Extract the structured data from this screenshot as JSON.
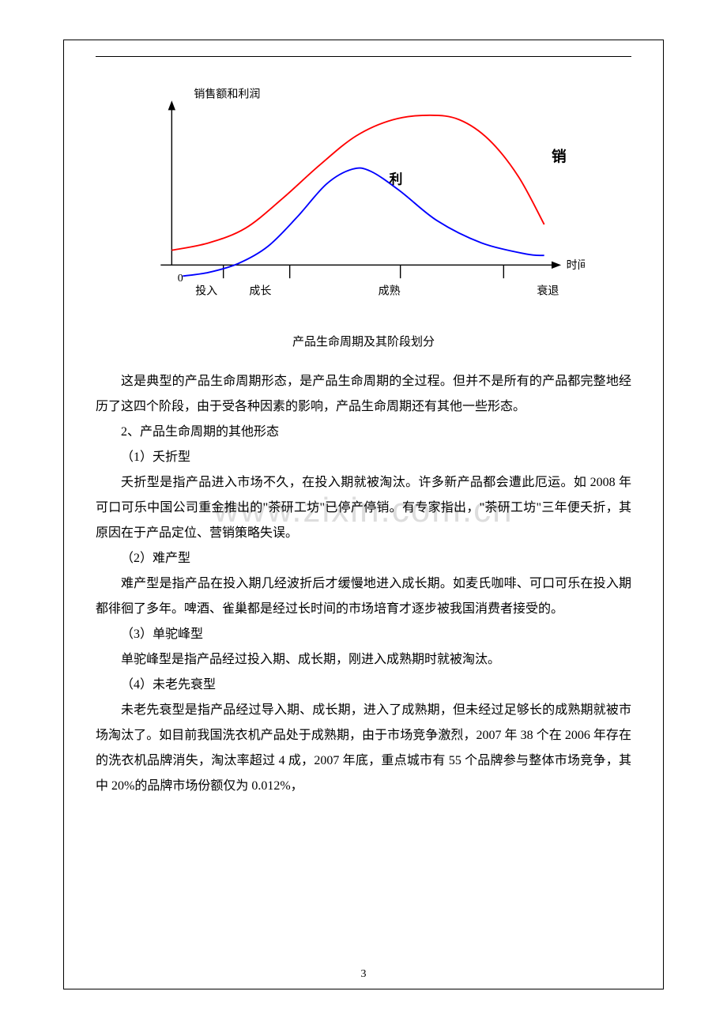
{
  "chart": {
    "type": "line",
    "y_axis_label": "销售额和利润",
    "x_axis_label": "时间",
    "origin_label": "0",
    "x_categories": [
      "投入",
      "成长",
      "成熟",
      "衰退"
    ],
    "series": [
      {
        "name": "销",
        "label_text": "销",
        "color": "#ff0000",
        "stroke_width": 2,
        "points": [
          [
            40,
            225
          ],
          [
            90,
            215
          ],
          [
            140,
            195
          ],
          [
            190,
            155
          ],
          [
            240,
            110
          ],
          [
            290,
            70
          ],
          [
            340,
            48
          ],
          [
            390,
            42
          ],
          [
            430,
            48
          ],
          [
            470,
            75
          ],
          [
            510,
            125
          ],
          [
            545,
            190
          ]
        ]
      },
      {
        "name": "利",
        "label_text": "利",
        "color": "#0000ff",
        "stroke_width": 2,
        "points": [
          [
            55,
            260
          ],
          [
            90,
            255
          ],
          [
            130,
            243
          ],
          [
            170,
            220
          ],
          [
            210,
            180
          ],
          [
            250,
            135
          ],
          [
            285,
            115
          ],
          [
            310,
            118
          ],
          [
            350,
            145
          ],
          [
            400,
            185
          ],
          [
            460,
            215
          ],
          [
            520,
            230
          ],
          [
            545,
            232
          ]
        ]
      }
    ],
    "x_ticks": [
      110,
      200,
      350,
      490
    ],
    "axis_color": "#000000",
    "background_color": "#ffffff",
    "font_size_label": 15,
    "font_size_axis": 15,
    "font_weight_series_label": "bold"
  },
  "caption": "产品生命周期及其阶段划分",
  "paragraphs": {
    "p1": "这是典型的产品生命周期形态，是产品生命周期的全过程。但并不是所有的产品都完整地经历了这四个阶段，由于受各种因素的影响，产品生命周期还有其他一些形态。",
    "sec2": "2、产品生命周期的其他形态",
    "h1": "（1）夭折型",
    "p2": "夭折型是指产品进入市场不久，在投入期就被淘汰。许多新产品都会遭此厄运。如 2008 年可口可乐中国公司重金推出的\"茶研工坊\"已停产停销。有专家指出，\"茶研工坊\"三年便夭折，其原因在于产品定位、营销策略失误。",
    "h2": "（2）难产型",
    "p3": "难产型是指产品在投入期几经波折后才缓慢地进入成长期。如麦氏咖啡、可口可乐在投入期都徘徊了多年。啤酒、雀巢都是经过长时间的市场培育才逐步被我国消费者接受的。",
    "h3": "（3）单驼峰型",
    "p4": "单驼峰型是指产品经过投入期、成长期，刚进入成熟期时就被淘汰。",
    "h4": "（4）未老先衰型",
    "p5": "未老先衰型是指产品经过导入期、成长期，进入了成熟期，但未经过足够长的成熟期就被市场淘汰了。如目前我国洗衣机产品处于成熟期，由于市场竞争激烈，2007 年 38 个在 2006 年存在的洗衣机品牌消失，淘汰率超过 4 成，2007 年底，重点城市有 55 个品牌参与整体市场竞争，其中 20%的品牌市场份额仅为 0.012%，"
  },
  "watermark": "www.zixin.com.cn",
  "page_number": "3"
}
